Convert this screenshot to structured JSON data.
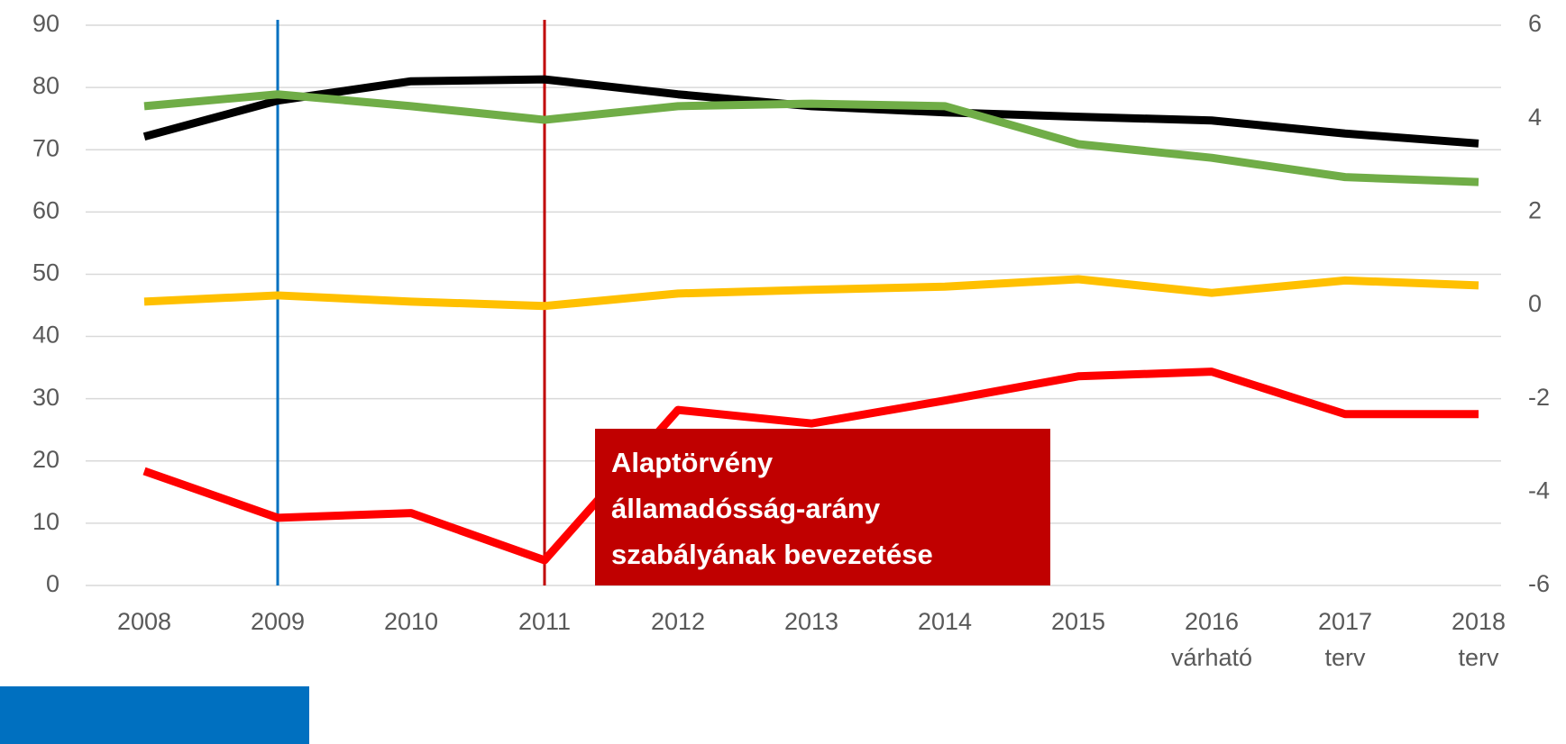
{
  "chart_data": {
    "type": "line",
    "categories": [
      "2008",
      "2009",
      "2010",
      "2011",
      "2012",
      "2013",
      "2014",
      "2015",
      "2016",
      "2017",
      "2018"
    ],
    "category_sublabels": [
      null,
      null,
      null,
      null,
      null,
      null,
      null,
      null,
      "várható",
      "terv",
      "terv"
    ],
    "series": [
      {
        "color": "#000000",
        "values": [
          72.1,
          77.9,
          81.0,
          81.3,
          78.9,
          77.0,
          76.0,
          75.3,
          74.7,
          72.6,
          71.0
        ]
      },
      {
        "color": "#70ad47",
        "values": [
          77.0,
          78.9,
          77.0,
          74.8,
          77.0,
          77.4,
          77.0,
          70.9,
          68.7,
          65.6,
          64.8
        ]
      },
      {
        "color": "#ffc000",
        "values": [
          45.6,
          46.6,
          45.6,
          44.9,
          46.9,
          47.5,
          48.0,
          49.2,
          47.0,
          49.0,
          48.2
        ]
      },
      {
        "color": "#ff0000",
        "axis": "y2",
        "values": [
          -3.55,
          -4.55,
          -4.45,
          -5.46,
          -2.24,
          -2.53,
          -2.04,
          -1.52,
          -1.42,
          -2.33,
          -2.33
        ]
      }
    ],
    "ylim": [
      0,
      90
    ],
    "yticks": [
      0,
      10,
      20,
      30,
      40,
      50,
      60,
      70,
      80,
      90
    ],
    "y2lim": [
      -6,
      6
    ],
    "y2ticks": [
      -6,
      -4,
      -2,
      0,
      2,
      4,
      6
    ],
    "grid": true,
    "vlines": [
      {
        "x": "2009",
        "color": "#0070c0"
      },
      {
        "x": "2011",
        "color": "#c00000"
      }
    ],
    "annotation": {
      "lines": [
        "Alaptörvény",
        "államadósság-arány",
        "szabályának bevezetése"
      ],
      "color": "#c00000"
    }
  }
}
